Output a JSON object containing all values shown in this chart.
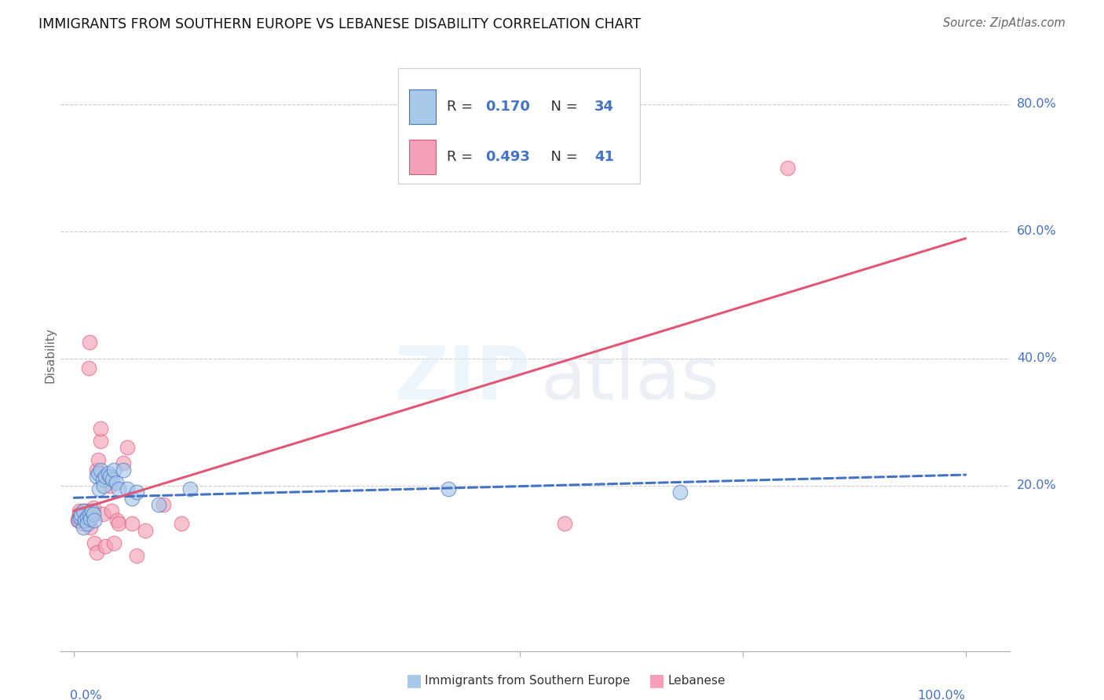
{
  "title": "IMMIGRANTS FROM SOUTHERN EUROPE VS LEBANESE DISABILITY CORRELATION CHART",
  "source": "Source: ZipAtlas.com",
  "ylabel": "Disability",
  "blue_R": "0.170",
  "blue_N": "34",
  "pink_R": "0.493",
  "pink_N": "41",
  "blue_color": "#a8c8e8",
  "pink_color": "#f4a0b8",
  "blue_line_color": "#4472c4",
  "pink_line_color": "#e05878",
  "blue_legend_fill": "#a8c8e8",
  "pink_legend_fill": "#f4a0b8",
  "ytick_vals": [
    0.2,
    0.4,
    0.6,
    0.8
  ],
  "ytick_labels": [
    "20.0%",
    "40.0%",
    "60.0%",
    "80.0%"
  ],
  "ylim": [
    -0.06,
    0.87
  ],
  "xlim": [
    -0.015,
    1.05
  ],
  "blue_scatter_x": [
    0.005,
    0.007,
    0.008,
    0.01,
    0.01,
    0.012,
    0.015,
    0.015,
    0.017,
    0.018,
    0.02,
    0.022,
    0.023,
    0.025,
    0.027,
    0.028,
    0.03,
    0.032,
    0.033,
    0.035,
    0.038,
    0.04,
    0.043,
    0.045,
    0.047,
    0.05,
    0.055,
    0.06,
    0.065,
    0.07,
    0.095,
    0.13,
    0.42,
    0.68
  ],
  "blue_scatter_y": [
    0.145,
    0.15,
    0.155,
    0.16,
    0.135,
    0.145,
    0.15,
    0.14,
    0.155,
    0.148,
    0.16,
    0.155,
    0.145,
    0.215,
    0.22,
    0.195,
    0.225,
    0.21,
    0.2,
    0.215,
    0.22,
    0.215,
    0.21,
    0.225,
    0.205,
    0.195,
    0.225,
    0.195,
    0.18,
    0.19,
    0.17,
    0.195,
    0.195,
    0.19
  ],
  "pink_scatter_x": [
    0.004,
    0.005,
    0.006,
    0.006,
    0.007,
    0.008,
    0.009,
    0.01,
    0.01,
    0.011,
    0.012,
    0.013,
    0.015,
    0.016,
    0.017,
    0.018,
    0.02,
    0.022,
    0.023,
    0.025,
    0.025,
    0.027,
    0.03,
    0.03,
    0.032,
    0.035,
    0.038,
    0.04,
    0.042,
    0.045,
    0.048,
    0.05,
    0.055,
    0.06,
    0.065,
    0.07,
    0.08,
    0.1,
    0.12,
    0.55,
    0.8
  ],
  "pink_scatter_y": [
    0.145,
    0.15,
    0.155,
    0.16,
    0.145,
    0.148,
    0.14,
    0.15,
    0.145,
    0.16,
    0.155,
    0.145,
    0.16,
    0.385,
    0.425,
    0.135,
    0.155,
    0.165,
    0.11,
    0.095,
    0.225,
    0.24,
    0.27,
    0.29,
    0.155,
    0.105,
    0.215,
    0.2,
    0.16,
    0.11,
    0.145,
    0.14,
    0.235,
    0.26,
    0.14,
    0.09,
    0.13,
    0.17,
    0.14,
    0.14,
    0.7
  ]
}
